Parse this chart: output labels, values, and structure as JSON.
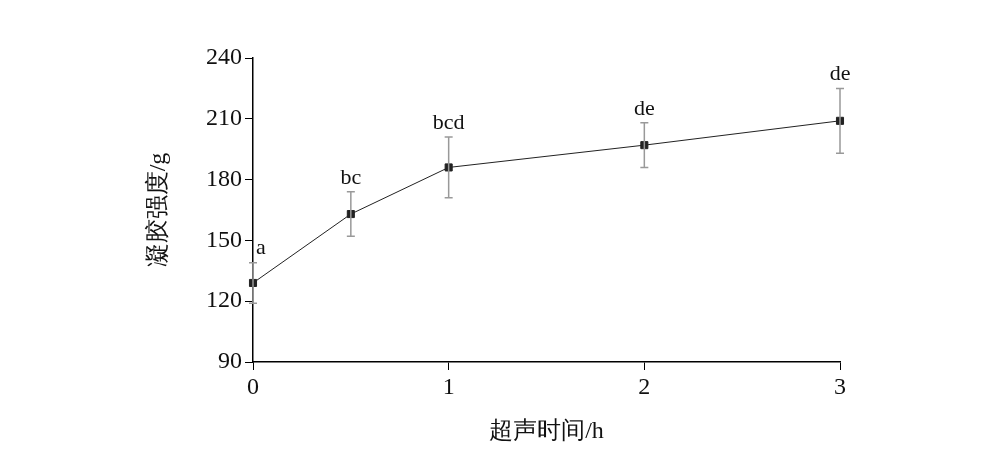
{
  "chart_data": {
    "type": "line",
    "xlabel": "超声时间/h",
    "ylabel": "凝胶强度/g",
    "x": [
      0,
      0.5,
      1,
      2,
      3
    ],
    "series": [
      {
        "color": "#222222",
        "values": [
          129,
          163,
          186,
          197,
          209
        ],
        "errors": [
          10,
          11,
          15,
          11,
          16
        ]
      }
    ],
    "xlim": [
      0,
      3
    ],
    "xticks": [
      0,
      1,
      2,
      3
    ],
    "ylim": [
      90,
      240
    ],
    "yticks": [
      90,
      120,
      150,
      180,
      210,
      240
    ],
    "annotations": [
      {
        "text": "a",
        "x": 0,
        "y": 139
      },
      {
        "text": "bc",
        "x": 0.5,
        "y": 174
      },
      {
        "text": "bcd",
        "x": 1,
        "y": 201
      },
      {
        "text": "de",
        "x": 2,
        "y": 208
      },
      {
        "text": "de",
        "x": 3,
        "y": 225
      }
    ],
    "grid": false,
    "legend": false,
    "marker": "square",
    "line_style": "solid"
  }
}
